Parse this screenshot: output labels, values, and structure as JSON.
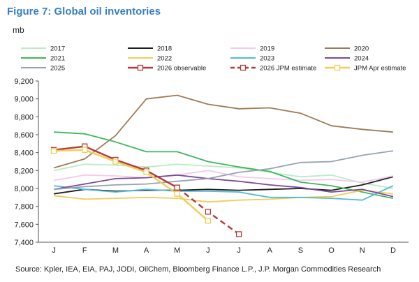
{
  "title": "Figure 7: Global oil inventories",
  "unit": "mb",
  "source": "Source: Kpler, IEA, EIA, PAJ, JODI, OilChem, Bloomberg Finance L.P., J.P. Morgan Commodities Research",
  "chart_data": {
    "type": "line",
    "categories": [
      "J",
      "F",
      "M",
      "A",
      "M",
      "J",
      "J",
      "A",
      "S",
      "O",
      "N",
      "D"
    ],
    "ylim": [
      7400,
      9200
    ],
    "yticks": [
      "9,200",
      "9,000",
      "8,800",
      "8,600",
      "8,400",
      "8,200",
      "8,000",
      "7,800",
      "7,600",
      "7,400"
    ],
    "ytick_values": [
      9200,
      9000,
      8800,
      8600,
      8400,
      8200,
      8000,
      7800,
      7600,
      7400
    ],
    "grid": false,
    "legend_position": "top",
    "series": [
      {
        "name": "2017",
        "color": "#b9ecc6",
        "style": "solid",
        "values": [
          8200,
          8270,
          8260,
          8240,
          8270,
          8250,
          8230,
          8180,
          8130,
          8150,
          8060,
          8000
        ]
      },
      {
        "name": "2018",
        "color": "#1f1f1f",
        "style": "solid",
        "values": [
          7940,
          7990,
          7970,
          7980,
          7980,
          7990,
          7980,
          7990,
          8000,
          7980,
          8040,
          8130
        ]
      },
      {
        "name": "2019",
        "color": "#f3c9ec",
        "style": "solid",
        "values": [
          8090,
          8150,
          8140,
          8120,
          8150,
          8200,
          8130,
          8110,
          8090,
          8100,
          8070,
          8140
        ]
      },
      {
        "name": "2020",
        "color": "#a07a55",
        "style": "solid",
        "values": [
          8230,
          8330,
          8590,
          9000,
          9040,
          8940,
          8890,
          8900,
          8840,
          8700,
          8660,
          8630
        ]
      },
      {
        "name": "2021",
        "color": "#3fb85a",
        "style": "solid",
        "values": [
          8630,
          8610,
          8520,
          8410,
          8410,
          8300,
          8240,
          8190,
          8070,
          8030,
          7960,
          7890
        ]
      },
      {
        "name": "2022",
        "color": "#f3cc55",
        "style": "solid",
        "values": [
          7920,
          7880,
          7890,
          7900,
          7890,
          7850,
          7870,
          7880,
          7900,
          7910,
          7980,
          7940
        ]
      },
      {
        "name": "2023",
        "color": "#52b9d6",
        "style": "solid",
        "values": [
          8030,
          7990,
          7960,
          7990,
          7970,
          7970,
          7960,
          7900,
          7900,
          7890,
          7870,
          8030
        ]
      },
      {
        "name": "2024",
        "color": "#7a4a98",
        "style": "solid",
        "values": [
          7990,
          8050,
          8110,
          8120,
          8150,
          8110,
          8080,
          8040,
          8010,
          7960,
          7990,
          7910
        ]
      },
      {
        "name": "2025",
        "color": "#95a2b3",
        "style": "solid",
        "values": [
          7990,
          8020,
          8040,
          8050,
          8080,
          8110,
          8180,
          8220,
          8290,
          8300,
          8370,
          8420
        ]
      },
      {
        "name": "2026 observable",
        "color": "#b23a3a",
        "style": "solid-marker",
        "values": [
          8430,
          8470,
          8320,
          8200,
          8010,
          null,
          null,
          null,
          null,
          null,
          null,
          null
        ]
      },
      {
        "name": "2026 JPM estimate",
        "color": "#b23a3a",
        "style": "dashed-marker",
        "values": [
          null,
          null,
          null,
          null,
          8010,
          7740,
          7490,
          null,
          null,
          null,
          null,
          null
        ]
      },
      {
        "name": "JPM Apr estimate",
        "color": "#f3cc55",
        "style": "solid-marker",
        "values": [
          8420,
          8430,
          8300,
          8180,
          7940,
          7640,
          null,
          null,
          null,
          null,
          null,
          null
        ]
      }
    ]
  }
}
